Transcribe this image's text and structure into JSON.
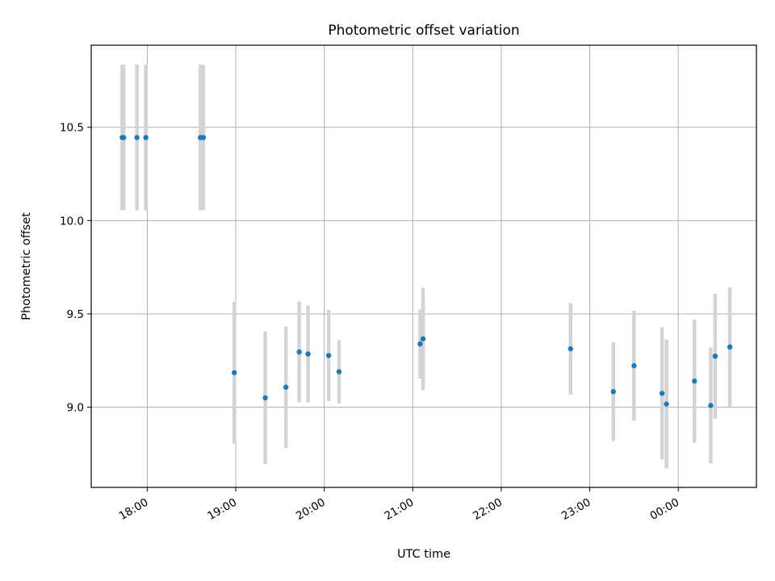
{
  "chart_data": {
    "type": "scatter",
    "title": "Photometric offset variation",
    "xlabel": "UTC time",
    "ylabel": "Photometric offset",
    "grid": true,
    "x_ticks": [
      "18:00",
      "19:00",
      "20:00",
      "21:00",
      "22:00",
      "23:00",
      "00:00"
    ],
    "y_ticks": [
      "9.0",
      "9.5",
      "10.0",
      "10.5"
    ],
    "y_tick_values": [
      9.0,
      9.5,
      10.0,
      10.5
    ],
    "xlim": [
      "17:22",
      "00:53"
    ],
    "ylim": [
      8.57,
      10.94
    ],
    "colors": {
      "marker": "#1f77b4",
      "errorbar": "#d3d3d3",
      "grid": "#b0b0b0"
    },
    "points": [
      {
        "time": "17:43",
        "y": 10.445,
        "err": 0.39
      },
      {
        "time": "17:44",
        "y": 10.445,
        "err": 0.39
      },
      {
        "time": "17:53",
        "y": 10.445,
        "err": 0.39
      },
      {
        "time": "17:59",
        "y": 10.445,
        "err": 0.39
      },
      {
        "time": "18:36",
        "y": 10.445,
        "err": 0.39
      },
      {
        "time": "18:38",
        "y": 10.445,
        "err": 0.39
      },
      {
        "time": "18:59",
        "y": 9.185,
        "err": 0.38
      },
      {
        "time": "19:20",
        "y": 9.05,
        "err": 0.355
      },
      {
        "time": "19:34",
        "y": 9.107,
        "err": 0.325
      },
      {
        "time": "19:43",
        "y": 9.296,
        "err": 0.27
      },
      {
        "time": "19:49",
        "y": 9.285,
        "err": 0.26
      },
      {
        "time": "20:03",
        "y": 9.277,
        "err": 0.245
      },
      {
        "time": "20:10",
        "y": 9.19,
        "err": 0.17
      },
      {
        "time": "21:05",
        "y": 9.339,
        "err": 0.185
      },
      {
        "time": "21:07",
        "y": 9.366,
        "err": 0.275
      },
      {
        "time": "22:47",
        "y": 9.313,
        "err": 0.245
      },
      {
        "time": "23:16",
        "y": 9.083,
        "err": 0.265
      },
      {
        "time": "23:30",
        "y": 9.222,
        "err": 0.295
      },
      {
        "time": "23:49",
        "y": 9.074,
        "err": 0.355
      },
      {
        "time": "23:52",
        "y": 9.017,
        "err": 0.345
      },
      {
        "time": "00:11",
        "y": 9.14,
        "err": 0.33
      },
      {
        "time": "00:22",
        "y": 9.009,
        "err": 0.31
      },
      {
        "time": "00:25",
        "y": 9.273,
        "err": 0.335
      },
      {
        "time": "00:35",
        "y": 9.322,
        "err": 0.32
      }
    ]
  }
}
